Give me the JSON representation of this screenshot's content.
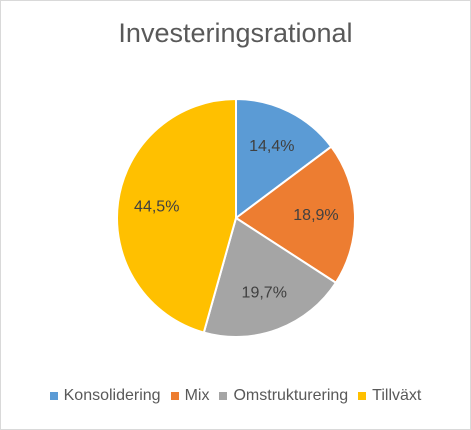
{
  "chart_data": {
    "type": "pie",
    "title": "Investeringsrational",
    "categories": [
      "Konsolidering",
      "Mix",
      "Omstrukturering",
      "Tillväxt"
    ],
    "values": [
      14.4,
      18.9,
      19.7,
      44.5
    ],
    "labels": [
      "14,4%",
      "18,9%",
      "19,7%",
      "44,5%"
    ],
    "colors": [
      "#5B9BD5",
      "#ED7D31",
      "#A5A5A5",
      "#FFC000"
    ],
    "legend_position": "bottom",
    "start_angle_deg": 0,
    "direction": "clockwise"
  }
}
